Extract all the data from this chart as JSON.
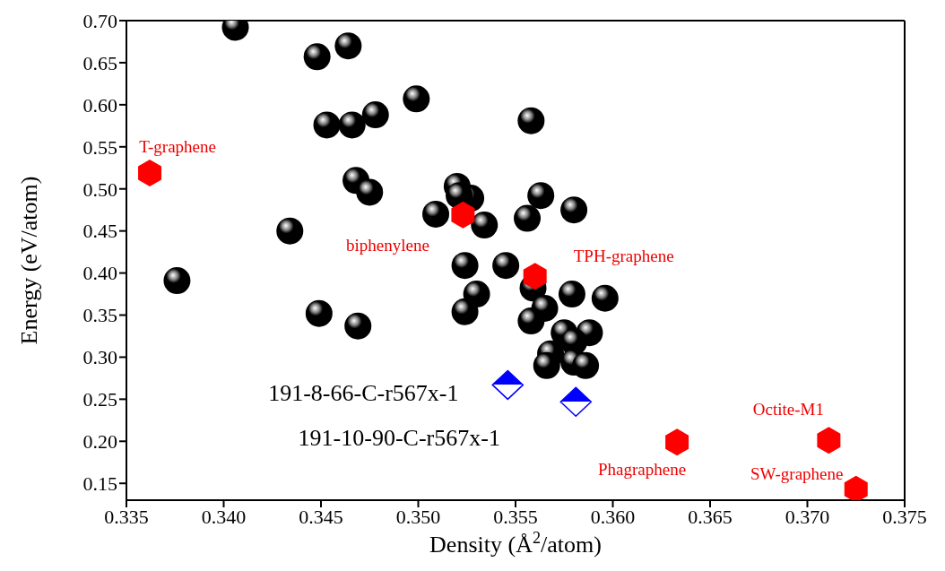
{
  "chart_data": {
    "type": "scatter",
    "xlabel": "Density (Å$^{2}$/atom)",
    "ylabel": "Energy (eV/atom)",
    "xlim": [
      0.335,
      0.375
    ],
    "xticks": [
      0.335,
      {
        "value": 0.34,
        "label": "0.340"
      },
      0.345,
      {
        "value": 0.35,
        "label": "0.350"
      },
      0.355,
      {
        "value": 0.36,
        "label": "0.360"
      },
      0.365,
      {
        "value": 0.37,
        "label": "0.370"
      },
      0.375
    ],
    "ylim": [
      0.13,
      0.7
    ],
    "yticks": [
      0.15,
      {
        "value": 0.2,
        "label": "0.20"
      },
      0.25,
      {
        "value": 0.3,
        "label": "0.30"
      },
      0.35,
      {
        "value": 0.4,
        "label": "0.40"
      },
      0.45,
      {
        "value": 0.5,
        "label": "0.50"
      },
      0.55,
      {
        "value": 0.6,
        "label": "0.60"
      },
      0.65,
      {
        "value": 0.7,
        "label": "0.70"
      }
    ],
    "grid": false,
    "legend": false,
    "series": [
      {
        "color": "#000000",
        "marker": "circle",
        "x": [
          0.3406,
          0.3448,
          0.3464,
          0.3499,
          0.3453,
          0.3466,
          0.3478,
          0.3558,
          0.3468,
          0.3475,
          0.3434,
          0.3376,
          0.3449,
          0.3469,
          0.3527,
          0.352,
          0.3521,
          0.3509,
          0.3534,
          0.3563,
          0.3556,
          0.358,
          0.3524,
          0.3545,
          0.3559,
          0.353,
          0.3524,
          0.3565,
          0.3558,
          0.3579,
          0.3596,
          0.3575,
          0.3588,
          0.358,
          0.3568,
          0.3566,
          0.358,
          0.3586
        ],
        "values": [
          0.692,
          0.657,
          0.67,
          0.607,
          0.576,
          0.576,
          0.588,
          0.581,
          0.51,
          0.496,
          0.45,
          0.391,
          0.352,
          0.337,
          0.489,
          0.503,
          0.492,
          0.47,
          0.457,
          0.492,
          0.465,
          0.475,
          0.409,
          0.409,
          0.382,
          0.375,
          0.354,
          0.358,
          0.343,
          0.375,
          0.37,
          0.329,
          0.329,
          0.318,
          0.304,
          0.29,
          0.294,
          0.29
        ]
      },
      {
        "color": "#ff0000",
        "x": [
          0.3362,
          0.3523,
          0.356,
          0.3633,
          0.3711,
          0.3725
        ],
        "values": [
          0.519,
          0.469,
          0.396,
          0.199,
          0.201,
          0.143
        ]
      },
      {
        "color": "#0000ff",
        "marker": "diamond",
        "x": [
          0.3546,
          0.3581
        ],
        "values": [
          0.267,
          0.247
        ]
      }
    ],
    "annotations": [
      {
        "text": "T-graphene",
        "x": 0.3362,
        "y": 0.519
      },
      {
        "text": "biphenylene",
        "x": 0.3523,
        "y": 0.469
      },
      {
        "text": "TPH-graphene",
        "x": 0.356,
        "y": 0.396
      },
      {
        "text": "Phagraphene",
        "x": 0.3633,
        "y": 0.199
      },
      {
        "text": "Octite-M1",
        "x": 0.3711,
        "y": 0.201
      },
      {
        "text": "SW-graphene",
        "x": 0.3725,
        "y": 0.143
      },
      "191-8-66-C-r567x-1",
      "191-10-90-C-r567x-1"
    ]
  }
}
